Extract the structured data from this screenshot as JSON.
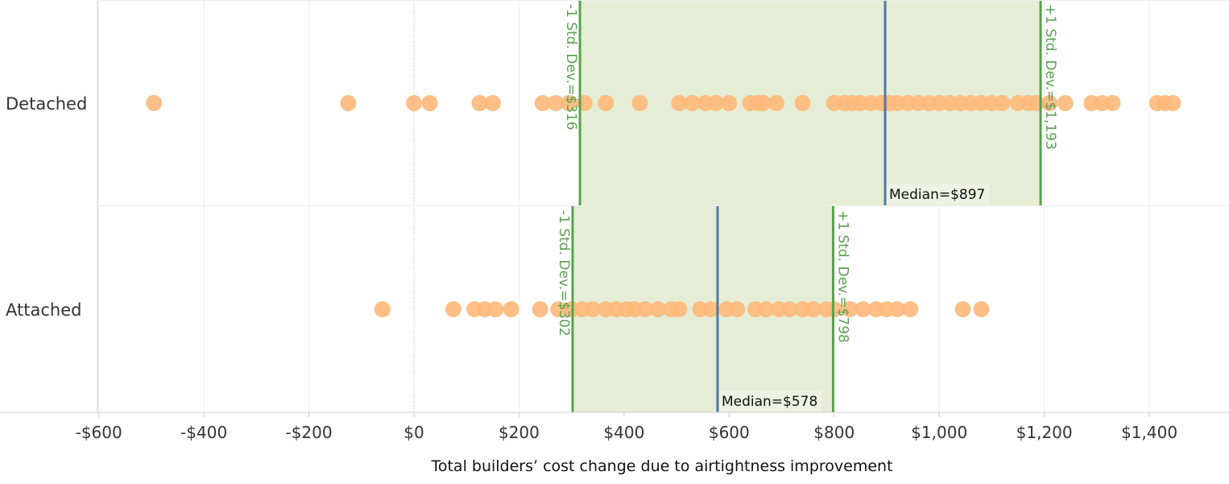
{
  "chart_data": {
    "type": "scatter",
    "xlabel": "Total builders’ cost change due to airtightness improvement",
    "xlim": [
      -605,
      1570
    ],
    "x_ticks": [
      -600,
      -400,
      -200,
      0,
      200,
      400,
      600,
      800,
      1000,
      1200,
      1400
    ],
    "x_tick_labels": [
      "-$600",
      "-$400",
      "-$200",
      "$0",
      "$200",
      "$400",
      "$600",
      "$800",
      "$1,000",
      "$1,200",
      "$1,400"
    ],
    "categories": [
      "Detached",
      "Attached"
    ],
    "colors": {
      "points": "#ffb879",
      "band": "#e6edd6",
      "std_dev_line": "#59a14f",
      "median_line": "#4e79a7",
      "grid": "#eeeeee",
      "axis": "#cccccc",
      "zero_line": "#bbbbbb"
    },
    "series": [
      {
        "name": "Detached",
        "values": [
          -495,
          -125,
          0,
          30,
          125,
          150,
          245,
          270,
          295,
          325,
          365,
          430,
          505,
          530,
          555,
          575,
          600,
          640,
          655,
          665,
          690,
          740,
          800,
          820,
          835,
          850,
          870,
          890,
          905,
          920,
          940,
          960,
          980,
          1000,
          1020,
          1040,
          1060,
          1080,
          1100,
          1120,
          1150,
          1170,
          1185,
          1210,
          1240,
          1290,
          1310,
          1330,
          1415,
          1430,
          1445
        ],
        "reference_lines": {
          "minus_sd": {
            "value": 316,
            "label": "-1 Std. Dev.=$316"
          },
          "median": {
            "value": 897,
            "label": "Median=$897"
          },
          "plus_sd": {
            "value": 1193,
            "label": "+1 Std. Dev.=$1,193"
          }
        }
      },
      {
        "name": "Attached",
        "values": [
          -60,
          75,
          115,
          135,
          155,
          185,
          240,
          275,
          300,
          320,
          340,
          365,
          385,
          405,
          420,
          440,
          465,
          490,
          505,
          545,
          565,
          595,
          615,
          650,
          670,
          695,
          715,
          740,
          760,
          785,
          800,
          830,
          855,
          880,
          900,
          920,
          945,
          1045,
          1080
        ],
        "reference_lines": {
          "minus_sd": {
            "value": 302,
            "label": "-1 Std. Dev.=$302"
          },
          "median": {
            "value": 578,
            "label": "Median=$578"
          },
          "plus_sd": {
            "value": 798,
            "label": "+1 Std. Dev.=$798"
          }
        }
      }
    ]
  }
}
